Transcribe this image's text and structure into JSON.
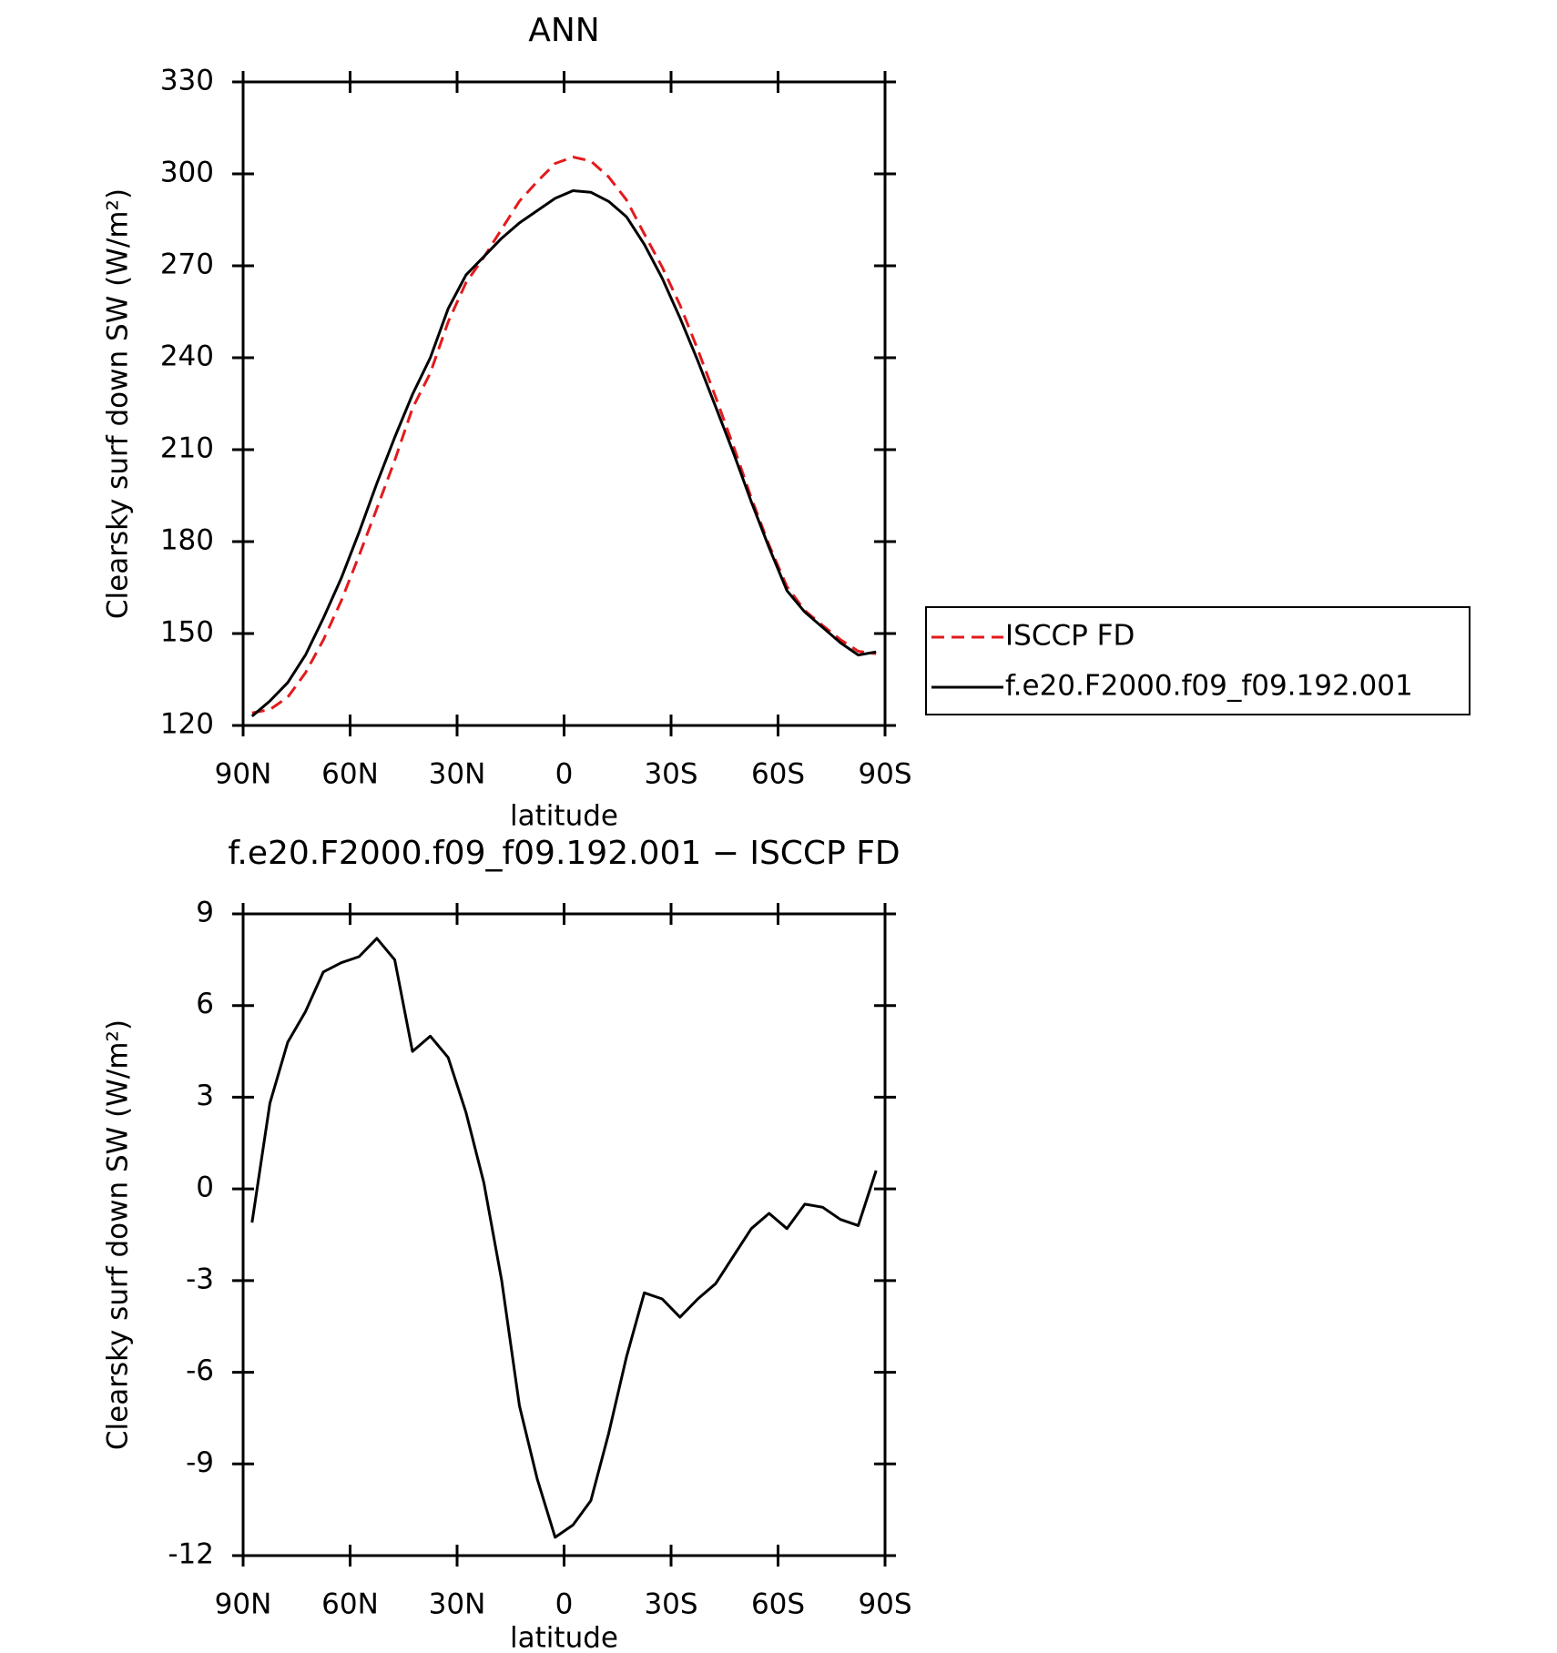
{
  "chart_data": [
    {
      "type": "line",
      "title": "ANN",
      "xlabel": "latitude",
      "ylabel": "Clearsky surf down SW (W/m²)",
      "x": [
        87.5,
        82.5,
        77.5,
        72.5,
        67.5,
        62.5,
        57.5,
        52.5,
        47.5,
        42.5,
        37.5,
        32.5,
        27.5,
        22.5,
        17.5,
        12.5,
        7.5,
        2.5,
        -2.5,
        -7.5,
        -12.5,
        -17.5,
        -22.5,
        -27.5,
        -32.5,
        -37.5,
        -42.5,
        -47.5,
        -52.5,
        -57.5,
        -62.5,
        -67.5,
        -72.5,
        -77.5,
        -82.5,
        -87.5
      ],
      "series": [
        {
          "name": "ISCCP FD",
          "color": "#e31a1c",
          "dashed": true,
          "values": [
            124.1,
            125.2,
            129.2,
            137.2,
            147.9,
            160.6,
            175.4,
            190.8,
            206.5,
            223.5,
            235,
            251.7,
            264.5,
            272.8,
            282,
            291.1,
            297.5,
            303.4,
            305.5,
            304.2,
            299,
            291.5,
            280.4,
            269.6,
            257.2,
            242.6,
            227.1,
            211.2,
            194.3,
            178.8,
            165.3,
            157.5,
            152.6,
            148,
            144.2,
            143.4
          ]
        },
        {
          "name": "f.e20.F2000.f09_f09.192.001",
          "color": "#000000",
          "dashed": false,
          "values": [
            123,
            128,
            134,
            143,
            155,
            168,
            183,
            199,
            214,
            228,
            240,
            256,
            267,
            273,
            279,
            284,
            288,
            292,
            294.5,
            294,
            291,
            286,
            277,
            266,
            253,
            239,
            224,
            209,
            193,
            178,
            164,
            157,
            152,
            147,
            143,
            144
          ]
        }
      ],
      "xlim": [
        90,
        -90
      ],
      "xticks": [
        {
          "value": 90,
          "label": "90N"
        },
        {
          "value": 60,
          "label": "60N"
        },
        {
          "value": 30,
          "label": "30N"
        },
        0,
        {
          "value": -30,
          "label": "30S"
        },
        {
          "value": -60,
          "label": "60S"
        },
        {
          "value": -90,
          "label": "90S"
        }
      ],
      "ylim": [
        120,
        330
      ],
      "yticks": [
        120,
        150,
        180,
        210,
        240,
        270,
        300,
        330
      ],
      "legend": "outside right"
    },
    {
      "type": "line",
      "title": "f.e20.F2000.f09_f09.192.001 − ISCCP FD",
      "xlabel": "latitude",
      "ylabel": "Clearsky surf down SW (W/m²)",
      "x": [
        87.5,
        82.5,
        77.5,
        72.5,
        67.5,
        62.5,
        57.5,
        52.5,
        47.5,
        42.5,
        37.5,
        32.5,
        27.5,
        22.5,
        17.5,
        12.5,
        7.5,
        2.5,
        -2.5,
        -7.5,
        -12.5,
        -17.5,
        -22.5,
        -27.5,
        -32.5,
        -37.5,
        -42.5,
        -47.5,
        -52.5,
        -57.5,
        -62.5,
        -67.5,
        -72.5,
        -77.5,
        -82.5,
        -87.5
      ],
      "series": [
        {
          "color": "#000000",
          "dashed": false,
          "values": [
            -1.1,
            2.8,
            4.8,
            5.8,
            7.1,
            7.4,
            7.6,
            8.2,
            7.5,
            4.5,
            5.0,
            4.3,
            2.5,
            0.2,
            -3.0,
            -7.1,
            -9.5,
            -11.4,
            -11.0,
            -10.2,
            -8.0,
            -5.5,
            -3.4,
            -3.6,
            -4.2,
            -3.6,
            -3.1,
            -2.2,
            -1.3,
            -0.8,
            -1.3,
            -0.5,
            -0.6,
            -1.0,
            -1.2,
            0.6
          ]
        }
      ],
      "xlim": [
        90,
        -90
      ],
      "xticks": [
        {
          "value": 90,
          "label": "90N"
        },
        {
          "value": 60,
          "label": "60N"
        },
        {
          "value": 30,
          "label": "30N"
        },
        0,
        {
          "value": -30,
          "label": "30S"
        },
        {
          "value": -60,
          "label": "60S"
        },
        {
          "value": -90,
          "label": "90S"
        }
      ],
      "ylim": [
        -12,
        9
      ],
      "yticks": [
        -12,
        -9,
        -6,
        -3,
        0,
        3,
        6,
        9
      ]
    }
  ]
}
